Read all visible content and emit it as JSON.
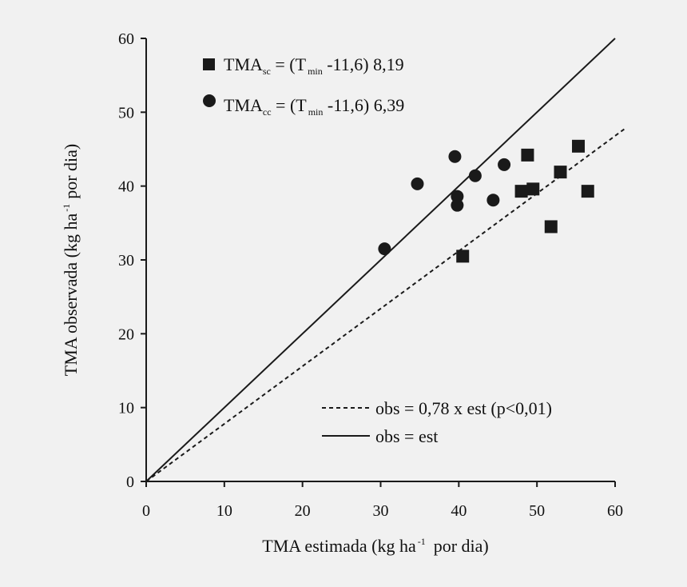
{
  "chart_data": {
    "type": "scatter",
    "xlabel": {
      "main": "TMA estimada (kg ha",
      "sup": "-1",
      "tail": "por dia)"
    },
    "ylabel": {
      "main": "TMA observada (kg ha",
      "sup": "-1",
      "tail": "por dia)"
    },
    "xlim": [
      0,
      60
    ],
    "ylim": [
      0,
      60
    ],
    "xticks": [
      "0",
      "10",
      "20",
      "30",
      "40",
      "50",
      "60"
    ],
    "yticks": [
      "0",
      "10",
      "20",
      "30",
      "40",
      "50",
      "60"
    ],
    "grid": false,
    "series": [
      {
        "name": "TMAsc = (Tmin -11,6) 8,19",
        "marker": "square",
        "legend": {
          "base": "TMA",
          "sub": "sc",
          "eq": " = (T",
          "sub2": "min",
          "tail": " -11,6) 8,19"
        },
        "points": [
          {
            "x": 40.5,
            "y": 30.5
          },
          {
            "x": 48.0,
            "y": 39.3
          },
          {
            "x": 48.8,
            "y": 44.2
          },
          {
            "x": 49.5,
            "y": 39.6
          },
          {
            "x": 51.8,
            "y": 34.5
          },
          {
            "x": 53.0,
            "y": 41.9
          },
          {
            "x": 55.3,
            "y": 45.4
          },
          {
            "x": 56.5,
            "y": 39.3
          }
        ]
      },
      {
        "name": "TMAcc = (Tmin -11,6) 6,39",
        "marker": "circle",
        "legend": {
          "base": "TMA",
          "sub": "cc",
          "eq": " = (T",
          "sub2": "min",
          "tail": " -11,6) 6,39"
        },
        "points": [
          {
            "x": 30.5,
            "y": 31.5
          },
          {
            "x": 34.7,
            "y": 40.3
          },
          {
            "x": 39.5,
            "y": 44.0
          },
          {
            "x": 39.8,
            "y": 38.6
          },
          {
            "x": 39.8,
            "y": 37.4
          },
          {
            "x": 42.1,
            "y": 41.4
          },
          {
            "x": 44.4,
            "y": 38.1
          },
          {
            "x": 45.8,
            "y": 42.9
          }
        ]
      }
    ],
    "lines": [
      {
        "name": "obs = 0,78 x est (p<0,01)",
        "style": "dashed",
        "slope": 0.78,
        "x_end": 61.2
      },
      {
        "name": "obs = est",
        "style": "solid",
        "slope": 1.0,
        "x_end": 60
      }
    ],
    "colors": {
      "ink": "#1a1a1a",
      "background": "#f1f1f1"
    }
  }
}
